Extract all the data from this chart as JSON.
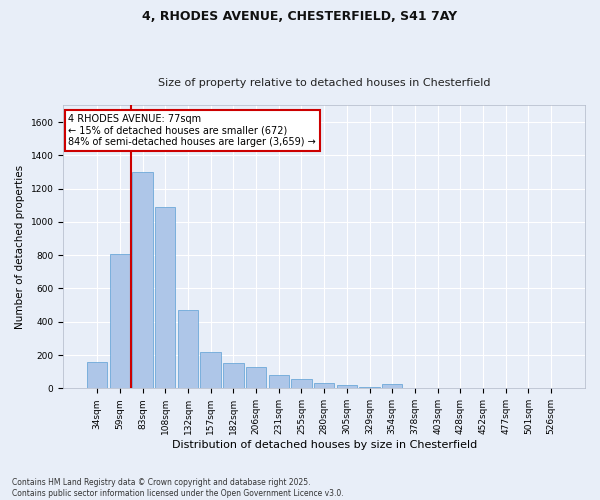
{
  "title": "4, RHODES AVENUE, CHESTERFIELD, S41 7AY",
  "subtitle": "Size of property relative to detached houses in Chesterfield",
  "xlabel": "Distribution of detached houses by size in Chesterfield",
  "ylabel": "Number of detached properties",
  "footnote": "Contains HM Land Registry data © Crown copyright and database right 2025.\nContains public sector information licensed under the Open Government Licence v3.0.",
  "categories": [
    "34sqm",
    "59sqm",
    "83sqm",
    "108sqm",
    "132sqm",
    "157sqm",
    "182sqm",
    "206sqm",
    "231sqm",
    "255sqm",
    "280sqm",
    "305sqm",
    "329sqm",
    "354sqm",
    "378sqm",
    "403sqm",
    "428sqm",
    "452sqm",
    "477sqm",
    "501sqm",
    "526sqm"
  ],
  "values": [
    160,
    810,
    1300,
    1090,
    470,
    220,
    150,
    130,
    80,
    55,
    35,
    20,
    10,
    25,
    5,
    5,
    0,
    5,
    0,
    0,
    5
  ],
  "bar_color": "#aec6e8",
  "bar_edge_color": "#5a9fd4",
  "bg_color": "#e8eef8",
  "grid_color": "#ffffff",
  "annotation_text": "4 RHODES AVENUE: 77sqm\n← 15% of detached houses are smaller (672)\n84% of semi-detached houses are larger (3,659) →",
  "annotation_box_color": "#ffffff",
  "annotation_box_edge": "#cc0000",
  "vline_color": "#cc0000",
  "vline_x": 1.5,
  "ylim": [
    0,
    1700
  ],
  "yticks": [
    0,
    200,
    400,
    600,
    800,
    1000,
    1200,
    1400,
    1600
  ],
  "title_fontsize": 9,
  "subtitle_fontsize": 8,
  "ylabel_fontsize": 7.5,
  "xlabel_fontsize": 8,
  "tick_fontsize": 6.5,
  "footnote_fontsize": 5.5,
  "annotation_fontsize": 7
}
